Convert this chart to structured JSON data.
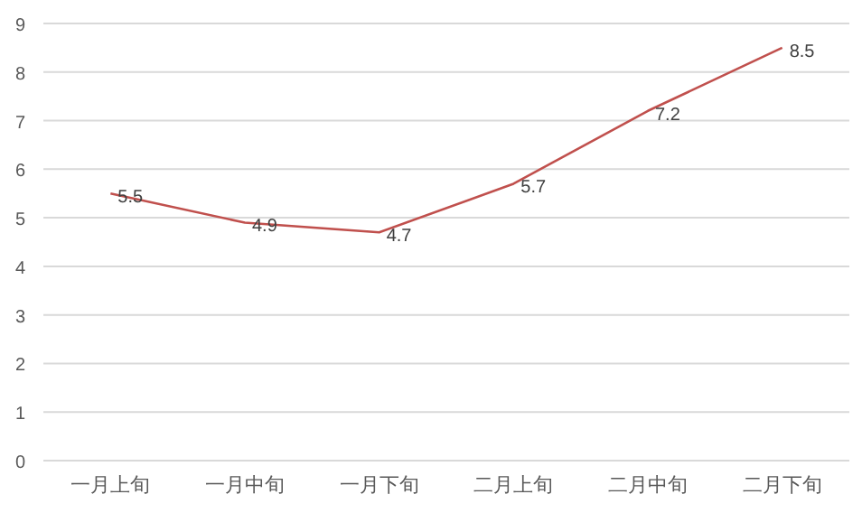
{
  "chart_data": {
    "type": "line",
    "categories": [
      "一月上旬",
      "一月中旬",
      "一月下旬",
      "二月上旬",
      "二月中旬",
      "二月下旬"
    ],
    "series": [
      {
        "color": "#c0504d",
        "values": [
          5.5,
          4.9,
          4.7,
          5.7,
          7.2,
          8.5
        ]
      }
    ],
    "ylim": [
      0,
      9
    ],
    "yticks": [
      0,
      1,
      2,
      3,
      4,
      5,
      6,
      7,
      8,
      9
    ],
    "grid": "y",
    "data_labels": true,
    "marker": "none",
    "line_style": "solid"
  }
}
